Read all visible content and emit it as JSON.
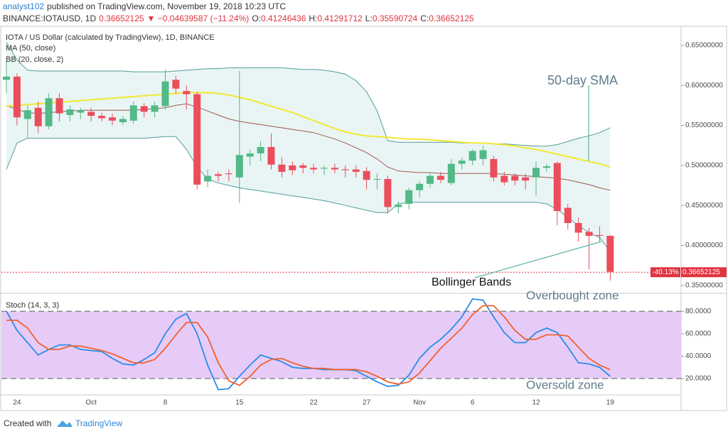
{
  "header": {
    "author": "analyst102",
    "published": "published on TradingView.com, November 19, 2018 10:23 UTC",
    "symbol": "BINANCE:IOTAUSD, 1D",
    "price": "0.36652125",
    "change": "▼ −0.04639587 (−11.24%)",
    "ohlc": [
      {
        "label": "O:",
        "value": "0.41246436"
      },
      {
        "label": "H:",
        "value": "0.41291712"
      },
      {
        "label": "L:",
        "value": "0.35590724"
      },
      {
        "label": "C:",
        "value": "0.36652125"
      }
    ]
  },
  "chart_data": [
    {
      "type": "candlestick",
      "title": "IOTA / US Dollar (calculated by TradingView), 1D, BINANCE",
      "categories": [
        null,
        "24",
        null,
        null,
        null,
        null,
        null,
        null,
        "Oct",
        null,
        null,
        null,
        null,
        null,
        null,
        "8",
        null,
        null,
        null,
        null,
        null,
        null,
        "15",
        null,
        null,
        null,
        null,
        null,
        null,
        "22",
        null,
        null,
        null,
        null,
        "27",
        null,
        null,
        null,
        null,
        "Nov",
        null,
        null,
        null,
        null,
        "6",
        null,
        null,
        null,
        null,
        null,
        "12",
        null,
        null,
        null,
        null,
        null,
        null,
        "19"
      ],
      "open": [
        0.607,
        0.611,
        0.558,
        0.572,
        0.549,
        0.584,
        0.563,
        0.566,
        0.567,
        0.562,
        0.56,
        0.554,
        0.556,
        0.574,
        0.567,
        0.574,
        0.607,
        0.593,
        0.589,
        0.48,
        0.489,
        0.49,
        0.485,
        0.511,
        0.515,
        0.523,
        0.501,
        0.5,
        0.5,
        0.497,
        0.496,
        0.497,
        0.495,
        0.495,
        0.493,
        0.482,
        0.483,
        0.448,
        0.452,
        0.469,
        0.477,
        0.487,
        0.478,
        0.502,
        0.506,
        0.508,
        0.508,
        0.487,
        0.487,
        0.485,
        0.485,
        0.497,
        0.503,
        0.447,
        0.428,
        0.417,
        0.413,
        0.412
      ],
      "high": [
        0.63,
        0.615,
        0.575,
        0.58,
        0.59,
        0.59,
        0.575,
        0.572,
        0.572,
        0.566,
        0.565,
        0.562,
        0.58,
        0.578,
        0.58,
        0.62,
        0.612,
        0.6,
        0.592,
        0.495,
        0.492,
        0.495,
        0.618,
        0.52,
        0.53,
        0.54,
        0.51,
        0.505,
        0.503,
        0.502,
        0.5,
        0.502,
        0.5,
        0.5,
        0.498,
        0.49,
        0.487,
        0.455,
        0.472,
        0.48,
        0.49,
        0.492,
        0.508,
        0.51,
        0.52,
        0.525,
        0.512,
        0.492,
        0.49,
        0.49,
        0.505,
        0.502,
        0.505,
        0.452,
        0.435,
        0.422,
        0.424,
        0.413
      ],
      "low": [
        0.59,
        0.55,
        0.535,
        0.54,
        0.545,
        0.555,
        0.555,
        0.558,
        0.555,
        0.555,
        0.55,
        0.55,
        0.552,
        0.56,
        0.56,
        0.57,
        0.59,
        0.57,
        0.47,
        0.473,
        0.48,
        0.48,
        0.453,
        0.5,
        0.505,
        0.495,
        0.485,
        0.488,
        0.49,
        0.49,
        0.488,
        0.49,
        0.485,
        0.485,
        0.47,
        0.47,
        0.44,
        0.44,
        0.445,
        0.46,
        0.472,
        0.478,
        0.475,
        0.495,
        0.5,
        0.5,
        0.48,
        0.475,
        0.475,
        0.47,
        0.462,
        0.492,
        0.425,
        0.42,
        0.405,
        0.37,
        0.405,
        0.356
      ],
      "close": [
        0.611,
        0.56,
        0.569,
        0.549,
        0.584,
        0.565,
        0.57,
        0.569,
        0.562,
        0.559,
        0.556,
        0.558,
        0.575,
        0.567,
        0.575,
        0.605,
        0.596,
        0.589,
        0.476,
        0.487,
        0.487,
        0.489,
        0.513,
        0.515,
        0.523,
        0.501,
        0.492,
        0.494,
        0.497,
        0.495,
        0.497,
        0.495,
        0.494,
        0.492,
        0.482,
        0.483,
        0.448,
        0.451,
        0.469,
        0.477,
        0.487,
        0.482,
        0.502,
        0.506,
        0.518,
        0.519,
        0.485,
        0.479,
        0.481,
        0.481,
        0.497,
        0.499,
        0.443,
        0.428,
        0.416,
        0.412,
        0.412,
        0.367
      ],
      "up_color": "#53b987",
      "down_color": "#eb4d5c",
      "ma": {
        "name": "MA (50, close)",
        "color": "#f2e830",
        "values": [
          0.574,
          0.575,
          0.576,
          0.577,
          0.578,
          0.579,
          0.58,
          0.581,
          0.582,
          0.583,
          0.584,
          0.585,
          0.586,
          0.587,
          0.588,
          0.589,
          0.59,
          0.591,
          0.591,
          0.591,
          0.59,
          0.588,
          0.585,
          0.582,
          0.578,
          0.574,
          0.57,
          0.566,
          0.561,
          0.556,
          0.551,
          0.546,
          0.542,
          0.539,
          0.537,
          0.536,
          0.535,
          0.534,
          0.533,
          0.533,
          0.532,
          0.531,
          0.53,
          0.529,
          0.528,
          0.528,
          0.527,
          0.526,
          0.524,
          0.522,
          0.52,
          0.517,
          0.514,
          0.511,
          0.508,
          0.505,
          0.502,
          0.498
        ]
      },
      "bollinger": {
        "name": "BB (20, close, 2)",
        "band_color": "#4f9e96",
        "basis_color": "#9a5a4c",
        "fill": "#e4f3f1",
        "upper": [
          0.654,
          0.632,
          0.619,
          0.618,
          0.618,
          0.618,
          0.618,
          0.618,
          0.618,
          0.618,
          0.618,
          0.618,
          0.617,
          0.617,
          0.617,
          0.617,
          0.618,
          0.619,
          0.62,
          0.621,
          0.621,
          0.622,
          0.622,
          0.622,
          0.622,
          0.622,
          0.622,
          0.621,
          0.62,
          0.62,
          0.619,
          0.617,
          0.614,
          0.606,
          0.592,
          0.568,
          0.531,
          0.529,
          0.529,
          0.529,
          0.529,
          0.529,
          0.529,
          0.528,
          0.528,
          0.528,
          0.527,
          0.527,
          0.526,
          0.525,
          0.524,
          0.524,
          0.526,
          0.53,
          0.534,
          0.537,
          0.541,
          0.547
        ],
        "basis": [
          0.575,
          0.57,
          0.566,
          0.565,
          0.566,
          0.567,
          0.568,
          0.569,
          0.569,
          0.569,
          0.569,
          0.569,
          0.569,
          0.57,
          0.571,
          0.572,
          0.575,
          0.577,
          0.573,
          0.568,
          0.563,
          0.558,
          0.555,
          0.553,
          0.551,
          0.549,
          0.547,
          0.545,
          0.543,
          0.541,
          0.537,
          0.533,
          0.528,
          0.522,
          0.516,
          0.508,
          0.498,
          0.493,
          0.492,
          0.491,
          0.491,
          0.49,
          0.49,
          0.49,
          0.49,
          0.49,
          0.49,
          0.489,
          0.488,
          0.487,
          0.486,
          0.485,
          0.484,
          0.482,
          0.479,
          0.476,
          0.472,
          0.469
        ],
        "lower": [
          0.495,
          0.528,
          0.534,
          0.534,
          0.534,
          0.534,
          0.534,
          0.534,
          0.534,
          0.534,
          0.534,
          0.534,
          0.534,
          0.534,
          0.535,
          0.536,
          0.536,
          0.52,
          0.498,
          0.483,
          0.478,
          0.475,
          0.472,
          0.47,
          0.468,
          0.466,
          0.464,
          0.462,
          0.46,
          0.458,
          0.456,
          0.453,
          0.45,
          0.447,
          0.444,
          0.441,
          0.441,
          0.452,
          0.454,
          0.454,
          0.454,
          0.454,
          0.454,
          0.454,
          0.454,
          0.454,
          0.454,
          0.454,
          0.454,
          0.454,
          0.454,
          0.452,
          0.445,
          0.435,
          0.425,
          0.416,
          0.41,
          0.392
        ]
      },
      "ylim": [
        0.341,
        0.673
      ],
      "yticks": [
        {
          "value": 0.65,
          "label": "0.65000000"
        },
        {
          "value": 0.6,
          "label": "0.60000000"
        },
        {
          "value": 0.55,
          "label": "0.55000000"
        },
        {
          "value": 0.5,
          "label": "0.50000000"
        },
        {
          "value": 0.45,
          "label": "0.45000000"
        },
        {
          "value": 0.4,
          "label": "0.40000000"
        },
        {
          "value": 0.35,
          "label": "0.35000000"
        }
      ],
      "last_price": 0.36652125,
      "change_label": "-40.13%",
      "last_color": "#e0343f",
      "annotations": [
        "50-day SMA",
        "Bollinger Bands"
      ]
    },
    {
      "type": "line",
      "title": "Stoch (14, 3, 3)",
      "series": [
        {
          "color": "#2c8be6",
          "values": [
            80,
            63,
            52,
            41,
            46,
            50,
            50,
            46,
            45,
            44,
            38,
            33,
            32,
            37,
            43,
            60,
            73,
            78,
            60,
            32,
            10,
            11,
            22,
            32,
            41,
            38,
            35,
            30,
            29,
            29,
            28,
            28,
            28,
            27,
            22,
            17,
            13,
            14,
            23,
            38,
            48,
            55,
            64,
            75,
            91,
            90,
            75,
            61,
            52,
            52,
            61,
            65,
            61,
            48,
            34,
            33,
            30,
            22
          ]
        },
        {
          "color": "#f0612c",
          "values": [
            72,
            72,
            65,
            52,
            46,
            46,
            49,
            49,
            47,
            45,
            42,
            38,
            34,
            34,
            37,
            47,
            59,
            70,
            70,
            57,
            34,
            18,
            14,
            22,
            32,
            37,
            38,
            34,
            31,
            29,
            29,
            28,
            28,
            28,
            26,
            22,
            17,
            15,
            17,
            25,
            36,
            47,
            56,
            65,
            77,
            85,
            85,
            75,
            63,
            55,
            55,
            59,
            59,
            58,
            48,
            38,
            32,
            28
          ]
        }
      ],
      "bands": [
        80,
        20
      ],
      "band_fill": "#e6cbf8",
      "ylim": [
        6,
        96
      ],
      "yticks": [
        {
          "value": 80,
          "label": "80.0000"
        },
        {
          "value": 60,
          "label": "60.0000"
        },
        {
          "value": 40,
          "label": "40.0000"
        },
        {
          "value": 20,
          "label": "20.0000"
        }
      ],
      "annotations": [
        "Overbought zone",
        "Oversold zone"
      ]
    }
  ],
  "footer": {
    "created": "Created with",
    "brand": "TradingView"
  }
}
